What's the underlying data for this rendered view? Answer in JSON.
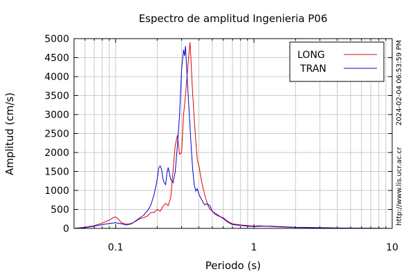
{
  "chart_data": {
    "type": "line",
    "title": "Espectro de amplitud Ingenieria P06",
    "xlabel": "Periodo (s)",
    "ylabel": "Amplitud (cm/s)",
    "x_scale": "log",
    "xlim": [
      0.05,
      10
    ],
    "ylim": [
      0,
      5000
    ],
    "grid": true,
    "legend_position": "top-right",
    "x_ticks": [
      {
        "value": 0.1,
        "label": "0.1"
      },
      {
        "value": 1,
        "label": "1"
      },
      {
        "value": 10,
        "label": "10"
      }
    ],
    "y_ticks": [
      {
        "value": 0,
        "label": "0"
      },
      {
        "value": 500,
        "label": "500"
      },
      {
        "value": 1000,
        "label": "1000"
      },
      {
        "value": 1500,
        "label": "1500"
      },
      {
        "value": 2000,
        "label": "2000"
      },
      {
        "value": 2500,
        "label": "2500"
      },
      {
        "value": 3000,
        "label": "3000"
      },
      {
        "value": 3500,
        "label": "3500"
      },
      {
        "value": 4000,
        "label": "4000"
      },
      {
        "value": 4500,
        "label": "4500"
      },
      {
        "value": 5000,
        "label": "5000"
      }
    ],
    "series": [
      {
        "name": "LONG",
        "color": "#dd0000",
        "points": [
          [
            0.05,
            0
          ],
          [
            0.06,
            30
          ],
          [
            0.07,
            70
          ],
          [
            0.08,
            140
          ],
          [
            0.09,
            220
          ],
          [
            0.097,
            290
          ],
          [
            0.1,
            300
          ],
          [
            0.105,
            240
          ],
          [
            0.11,
            150
          ],
          [
            0.12,
            110
          ],
          [
            0.13,
            130
          ],
          [
            0.14,
            190
          ],
          [
            0.15,
            260
          ],
          [
            0.16,
            280
          ],
          [
            0.17,
            330
          ],
          [
            0.18,
            420
          ],
          [
            0.19,
            420
          ],
          [
            0.2,
            500
          ],
          [
            0.21,
            450
          ],
          [
            0.22,
            580
          ],
          [
            0.23,
            660
          ],
          [
            0.24,
            600
          ],
          [
            0.25,
            800
          ],
          [
            0.26,
            1500
          ],
          [
            0.27,
            2200
          ],
          [
            0.28,
            2450
          ],
          [
            0.29,
            1950
          ],
          [
            0.3,
            2000
          ],
          [
            0.31,
            3000
          ],
          [
            0.32,
            3500
          ],
          [
            0.33,
            4100
          ],
          [
            0.34,
            4650
          ],
          [
            0.345,
            4900
          ],
          [
            0.35,
            4500
          ],
          [
            0.36,
            3600
          ],
          [
            0.37,
            2900
          ],
          [
            0.38,
            2300
          ],
          [
            0.39,
            1800
          ],
          [
            0.4,
            1650
          ],
          [
            0.42,
            1200
          ],
          [
            0.44,
            900
          ],
          [
            0.46,
            650
          ],
          [
            0.48,
            500
          ],
          [
            0.5,
            460
          ],
          [
            0.52,
            380
          ],
          [
            0.55,
            330
          ],
          [
            0.6,
            280
          ],
          [
            0.65,
            180
          ],
          [
            0.7,
            120
          ],
          [
            0.8,
            90
          ],
          [
            0.9,
            75
          ],
          [
            1.0,
            60
          ],
          [
            1.1,
            70
          ],
          [
            1.2,
            55
          ],
          [
            1.3,
            60
          ],
          [
            1.5,
            50
          ],
          [
            2.0,
            30
          ],
          [
            3.0,
            20
          ],
          [
            4.0,
            12
          ],
          [
            5,
            8
          ],
          [
            7,
            5
          ],
          [
            10,
            0
          ]
        ]
      },
      {
        "name": "TRAN",
        "color": "#0000cc",
        "points": [
          [
            0.05,
            0
          ],
          [
            0.06,
            20
          ],
          [
            0.07,
            60
          ],
          [
            0.08,
            100
          ],
          [
            0.09,
            130
          ],
          [
            0.1,
            150
          ],
          [
            0.11,
            120
          ],
          [
            0.12,
            90
          ],
          [
            0.13,
            120
          ],
          [
            0.14,
            200
          ],
          [
            0.15,
            280
          ],
          [
            0.16,
            350
          ],
          [
            0.165,
            420
          ],
          [
            0.17,
            460
          ],
          [
            0.18,
            620
          ],
          [
            0.19,
            900
          ],
          [
            0.2,
            1300
          ],
          [
            0.205,
            1600
          ],
          [
            0.21,
            1650
          ],
          [
            0.215,
            1550
          ],
          [
            0.22,
            1300
          ],
          [
            0.225,
            1200
          ],
          [
            0.23,
            1150
          ],
          [
            0.235,
            1450
          ],
          [
            0.24,
            1600
          ],
          [
            0.25,
            1300
          ],
          [
            0.26,
            1200
          ],
          [
            0.27,
            1500
          ],
          [
            0.28,
            2200
          ],
          [
            0.29,
            3000
          ],
          [
            0.3,
            4200
          ],
          [
            0.31,
            4700
          ],
          [
            0.315,
            4550
          ],
          [
            0.32,
            4800
          ],
          [
            0.325,
            4350
          ],
          [
            0.33,
            3900
          ],
          [
            0.34,
            3100
          ],
          [
            0.35,
            2300
          ],
          [
            0.36,
            1600
          ],
          [
            0.37,
            1150
          ],
          [
            0.38,
            980
          ],
          [
            0.39,
            1050
          ],
          [
            0.4,
            900
          ],
          [
            0.42,
            750
          ],
          [
            0.44,
            620
          ],
          [
            0.46,
            650
          ],
          [
            0.48,
            600
          ],
          [
            0.5,
            450
          ],
          [
            0.55,
            350
          ],
          [
            0.6,
            260
          ],
          [
            0.65,
            160
          ],
          [
            0.7,
            100
          ],
          [
            0.8,
            80
          ],
          [
            0.9,
            60
          ],
          [
            1.0,
            50
          ],
          [
            1.2,
            60
          ],
          [
            1.5,
            40
          ],
          [
            2.0,
            25
          ],
          [
            3.0,
            15
          ],
          [
            4.0,
            10
          ],
          [
            6,
            5
          ],
          [
            10,
            0
          ]
        ]
      }
    ]
  },
  "side_text": {
    "timestamp": "2024-02-04 06:53:59 PM",
    "url": "http://www.lis.ucr.ac.cr"
  }
}
